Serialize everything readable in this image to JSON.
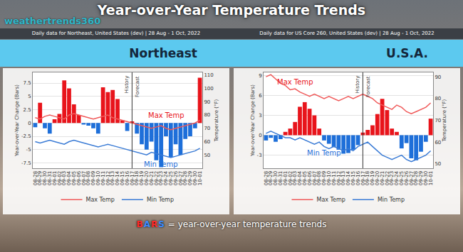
{
  "title": "Year-over-Year Temperature Trends",
  "logo": "weathertrends360",
  "caption": "BARS = year-over-year temperature trends",
  "chart_data": [
    {
      "type": "bar",
      "title": "Northeast",
      "subtitle": "Daily data for Northeast, United States (dev) | 28 Aug - 1 Oct, 2022",
      "categories": [
        "08-28",
        "08-29",
        "08-30",
        "08-31",
        "09-01",
        "09-02",
        "09-03",
        "09-04",
        "09-05",
        "09-06",
        "09-07",
        "09-08",
        "09-09",
        "09-10",
        "09-11",
        "09-12",
        "09-13",
        "09-14",
        "09-15",
        "09-16",
        "09-17",
        "09-18",
        "09-19",
        "09-20",
        "09-21",
        "09-22",
        "09-23",
        "09-24",
        "09-25",
        "09-26",
        "09-27",
        "09-28",
        "09-29",
        "09-30",
        "10-01"
      ],
      "series": [
        {
          "type": "bar",
          "values": [
            -0.8,
            3.8,
            -1.0,
            -2.0,
            0.7,
            1.7,
            8.0,
            6.5,
            3.5,
            1.5,
            -0.3,
            -0.5,
            -1.0,
            -2.0,
            6.7,
            5.8,
            6.2,
            4.5,
            0.5,
            -1.5,
            0.3,
            -2.0,
            -4.0,
            -5.0,
            -3.5,
            -7.0,
            -8.3,
            -2.5,
            -6.5,
            -4.0,
            -6.0,
            -3.0,
            -2.5,
            -1.0,
            8.5
          ],
          "colors": [
            "#1e6fd9",
            "#e8141b",
            "#1e6fd9",
            "#1e6fd9",
            "#e8141b",
            "#e8141b",
            "#e8141b",
            "#e8141b",
            "#e8141b",
            "#e8141b",
            "#1e6fd9",
            "#1e6fd9",
            "#1e6fd9",
            "#1e6fd9",
            "#e8141b",
            "#e8141b",
            "#e8141b",
            "#e8141b",
            "#e8141b",
            "#1e6fd9",
            "#e8141b",
            "#1e6fd9",
            "#1e6fd9",
            "#1e6fd9",
            "#1e6fd9",
            "#1e6fd9",
            "#1e6fd9",
            "#1e6fd9",
            "#1e6fd9",
            "#1e6fd9",
            "#1e6fd9",
            "#1e6fd9",
            "#1e6fd9",
            "#1e6fd9",
            "#e8141b"
          ]
        },
        {
          "name": "Max Temp",
          "type": "line",
          "axis": "y2",
          "color": "#f05a5a",
          "values": [
            78,
            77,
            79,
            80,
            79,
            78,
            77,
            80,
            81,
            80,
            79,
            78,
            77,
            78,
            79,
            80,
            78,
            77,
            76,
            75,
            74,
            73,
            72,
            71,
            70,
            71,
            72,
            70,
            69,
            70,
            71,
            72,
            73,
            74,
            76
          ]
        },
        {
          "name": "Min Temp",
          "type": "line",
          "axis": "y2",
          "color": "#3a7bd5",
          "values": [
            60,
            59,
            60,
            61,
            60,
            59,
            58,
            60,
            61,
            60,
            59,
            58,
            57,
            56,
            57,
            58,
            57,
            56,
            55,
            54,
            53,
            52,
            51,
            50,
            52,
            51,
            50,
            49,
            48,
            49,
            50,
            51,
            52,
            53,
            55
          ]
        }
      ],
      "ylabel": "Year-over-Year Change (Bars)",
      "y2label": "Temperature (°F)",
      "ylim": [
        -8.5,
        9.5
      ],
      "yticks": [
        -7.5,
        -5,
        -2.5,
        0,
        2.5,
        5,
        7.5
      ],
      "y2lim": [
        40,
        112
      ],
      "y2ticks": [
        50,
        60,
        70,
        80,
        90,
        100,
        110
      ],
      "grid": true,
      "legend": "bottom",
      "divider": {
        "x": "09-17",
        "labels": [
          "History",
          "Forecast"
        ]
      },
      "annotations": [
        {
          "text": "Max Temp",
          "x": "09-24",
          "y": 80,
          "axis": "y2",
          "color": "#e8141b"
        },
        {
          "text": "Min Temp",
          "x": "09-23",
          "y": 43,
          "axis": "y2",
          "color": "#1e6fd9"
        }
      ]
    },
    {
      "type": "bar",
      "title": "U.S.A.",
      "subtitle": "Daily data for US Core 260, United States (dev) | 28 Aug - 1 Oct, 2022",
      "categories": [
        "08-28",
        "08-29",
        "08-30",
        "08-31",
        "09-01",
        "09-02",
        "09-03",
        "09-04",
        "09-05",
        "09-06",
        "09-07",
        "09-08",
        "09-09",
        "09-10",
        "09-11",
        "09-12",
        "09-13",
        "09-14",
        "09-15",
        "09-16",
        "09-17",
        "09-18",
        "09-19",
        "09-20",
        "09-21",
        "09-22",
        "09-23",
        "09-24",
        "09-25",
        "09-26",
        "09-27",
        "09-28",
        "09-29",
        "09-30",
        "10-01"
      ],
      "series": [
        {
          "type": "bar",
          "values": [
            -0.8,
            -0.4,
            -1.0,
            -0.6,
            0.5,
            1.0,
            2.0,
            4.3,
            5.0,
            4.0,
            3.0,
            1.0,
            -0.8,
            -1.3,
            -1.8,
            -2.2,
            -2.8,
            -2.7,
            -2.2,
            -1.5,
            0.4,
            0.8,
            1.5,
            3.2,
            5.5,
            3.8,
            1.0,
            0.5,
            -2.0,
            -1.2,
            -3.5,
            -3.8,
            -2.5,
            -1.0,
            2.5
          ],
          "colors": [
            "#1e6fd9",
            "#1e6fd9",
            "#1e6fd9",
            "#1e6fd9",
            "#e8141b",
            "#e8141b",
            "#e8141b",
            "#e8141b",
            "#e8141b",
            "#e8141b",
            "#e8141b",
            "#e8141b",
            "#1e6fd9",
            "#1e6fd9",
            "#1e6fd9",
            "#1e6fd9",
            "#1e6fd9",
            "#1e6fd9",
            "#1e6fd9",
            "#1e6fd9",
            "#e8141b",
            "#e8141b",
            "#e8141b",
            "#e8141b",
            "#e8141b",
            "#e8141b",
            "#e8141b",
            "#e8141b",
            "#1e6fd9",
            "#1e6fd9",
            "#1e6fd9",
            "#1e6fd9",
            "#1e6fd9",
            "#1e6fd9",
            "#e8141b"
          ]
        },
        {
          "name": "Max Temp",
          "type": "line",
          "axis": "y2",
          "color": "#f05a5a",
          "values": [
            90,
            91,
            89,
            87,
            86,
            84,
            84.5,
            83,
            82,
            81,
            82,
            81,
            80,
            81,
            80,
            79,
            80,
            81,
            80,
            81,
            82,
            81,
            80,
            78,
            77,
            76,
            75,
            77,
            76,
            74,
            73,
            74,
            75,
            76,
            78
          ]
        },
        {
          "name": "Min Temp",
          "type": "line",
          "axis": "y2",
          "color": "#3a7bd5",
          "values": [
            64,
            65,
            64,
            63,
            62,
            62,
            61,
            62,
            61,
            60,
            59,
            60,
            58,
            57,
            58,
            57,
            56,
            57,
            56,
            58,
            59,
            60,
            58,
            56,
            54,
            53,
            52,
            53,
            54,
            52,
            51,
            52,
            53,
            54,
            56
          ]
        }
      ],
      "ylabel": "Year-over-Year Change (Bars)",
      "y2label": "Temperature (°F)",
      "ylim": [
        -5,
        9.5
      ],
      "yticks": [
        -3,
        0,
        3,
        6,
        9
      ],
      "y2lim": [
        48,
        92
      ],
      "y2ticks": [
        50,
        60,
        70,
        80,
        90
      ],
      "grid": true,
      "legend": "bottom",
      "divider": {
        "x": "09-17",
        "labels": [
          "History",
          "Forecast"
        ]
      },
      "annotations": [
        {
          "text": "Max Temp",
          "x": "09-03",
          "y": 87.5,
          "axis": "y2",
          "color": "#e8141b"
        },
        {
          "text": "Min Temp",
          "x": "09-09",
          "y": 55,
          "axis": "y2",
          "color": "#1e6fd9"
        }
      ]
    }
  ]
}
